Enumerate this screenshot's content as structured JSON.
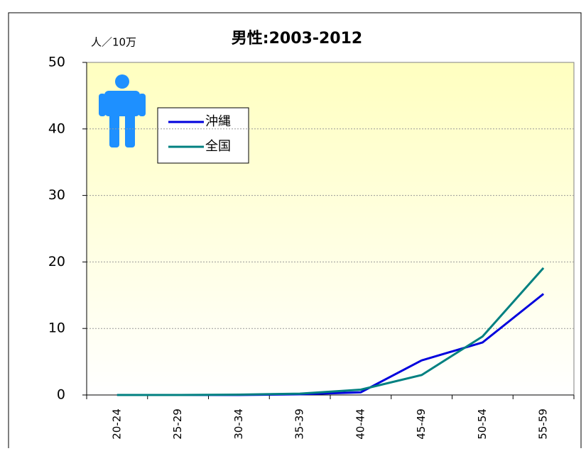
{
  "chart_data": {
    "type": "line",
    "title": "男性:2003-2012",
    "y_label": "人／10万",
    "categories": [
      "20-24",
      "25-29",
      "30-34",
      "35-39",
      "40-44",
      "45-49",
      "50-54",
      "55-59"
    ],
    "series": [
      {
        "name": "沖縄",
        "color": "#0000dd",
        "values": [
          0,
          0,
          0,
          0.1,
          0.4,
          5.2,
          7.9,
          15.2
        ]
      },
      {
        "name": "全国",
        "color": "#008080",
        "values": [
          0,
          0,
          0.05,
          0.2,
          0.8,
          3.0,
          8.8,
          19.1
        ]
      }
    ],
    "ylim": [
      0,
      50
    ],
    "yticks": [
      0,
      10,
      20,
      30,
      40,
      50
    ],
    "grid": true,
    "legend": "upper left"
  }
}
